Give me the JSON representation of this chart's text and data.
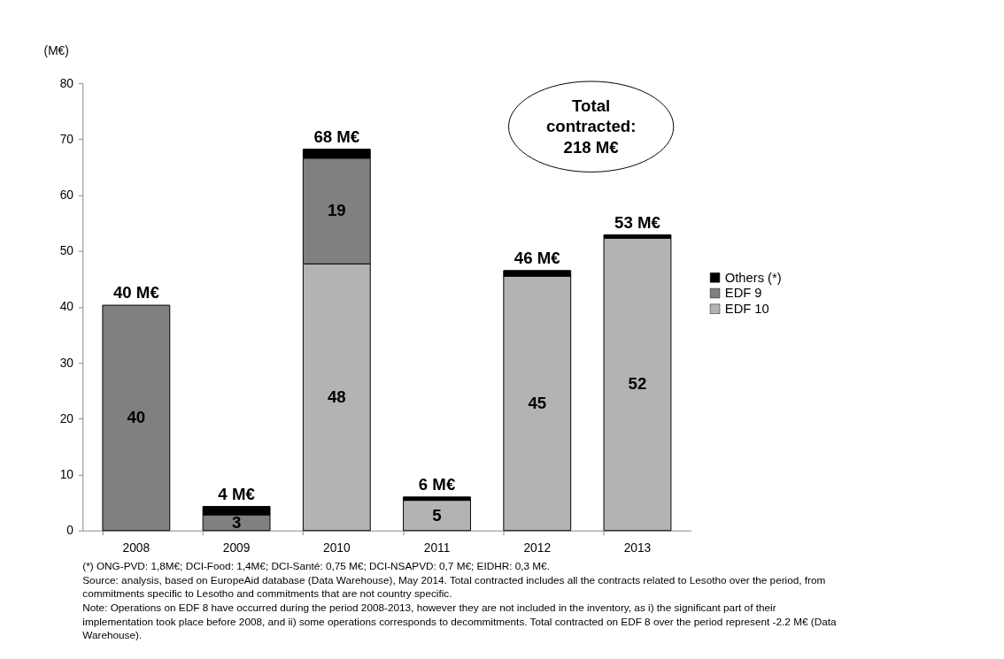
{
  "chart_data": {
    "type": "bar",
    "stacked": true,
    "ylabel": "(M€)",
    "categories": [
      "2008",
      "2009",
      "2010",
      "2011",
      "2012",
      "2013"
    ],
    "series": [
      {
        "name": "EDF 10",
        "color": "#b3b3b3",
        "values": [
          null,
          null,
          47.7,
          5.4,
          45.5,
          52.3
        ],
        "value_labels": [
          null,
          null,
          "48",
          "5",
          "45",
          "52"
        ]
      },
      {
        "name": "EDF 9",
        "color": "#808080",
        "values": [
          40.3,
          2.8,
          18.9,
          null,
          null,
          null
        ],
        "value_labels": [
          "40",
          "3",
          "19",
          null,
          null,
          null
        ]
      },
      {
        "name": "Others (*)",
        "color": "#000000",
        "values": [
          null,
          1.5,
          1.6,
          0.6,
          1.0,
          0.6
        ],
        "value_labels": [
          null,
          null,
          null,
          null,
          null,
          null
        ]
      }
    ],
    "totals": [
      "40 M€",
      "4 M€",
      "68 M€",
      "6 M€",
      "46 M€",
      "53 M€"
    ],
    "ylim": [
      0,
      80
    ],
    "yticks": [
      0,
      10,
      20,
      30,
      40,
      50,
      60,
      70,
      80
    ],
    "grid": false,
    "legend": "right",
    "annotations": [
      "Total\ncontracted:\n218 M€",
      "(*) ONG-PVD: 1,8M€; DCI-Food: 1,4M€; DCI-Santé: 0,75 M€; DCI-NSAPVD: 0,7 M€; EIDHR: 0,3 M€.",
      "Source: analysis, based on EuropeAid database (Data Warehouse), May 2014. Total contracted includes all the contracts related to Lesotho over the period, from commitments specific to Lesotho and commitments that are not country specific.",
      "Note: Operations on EDF 8 have occurred during the period 2008-2013, however they are not included in the inventory, as i) the significant part of their implementation took place before 2008, and ii) some operations corresponds to decommitments. Total contracted on EDF 8 over the period represent -2.2 M€ (Data Warehouse)."
    ]
  }
}
